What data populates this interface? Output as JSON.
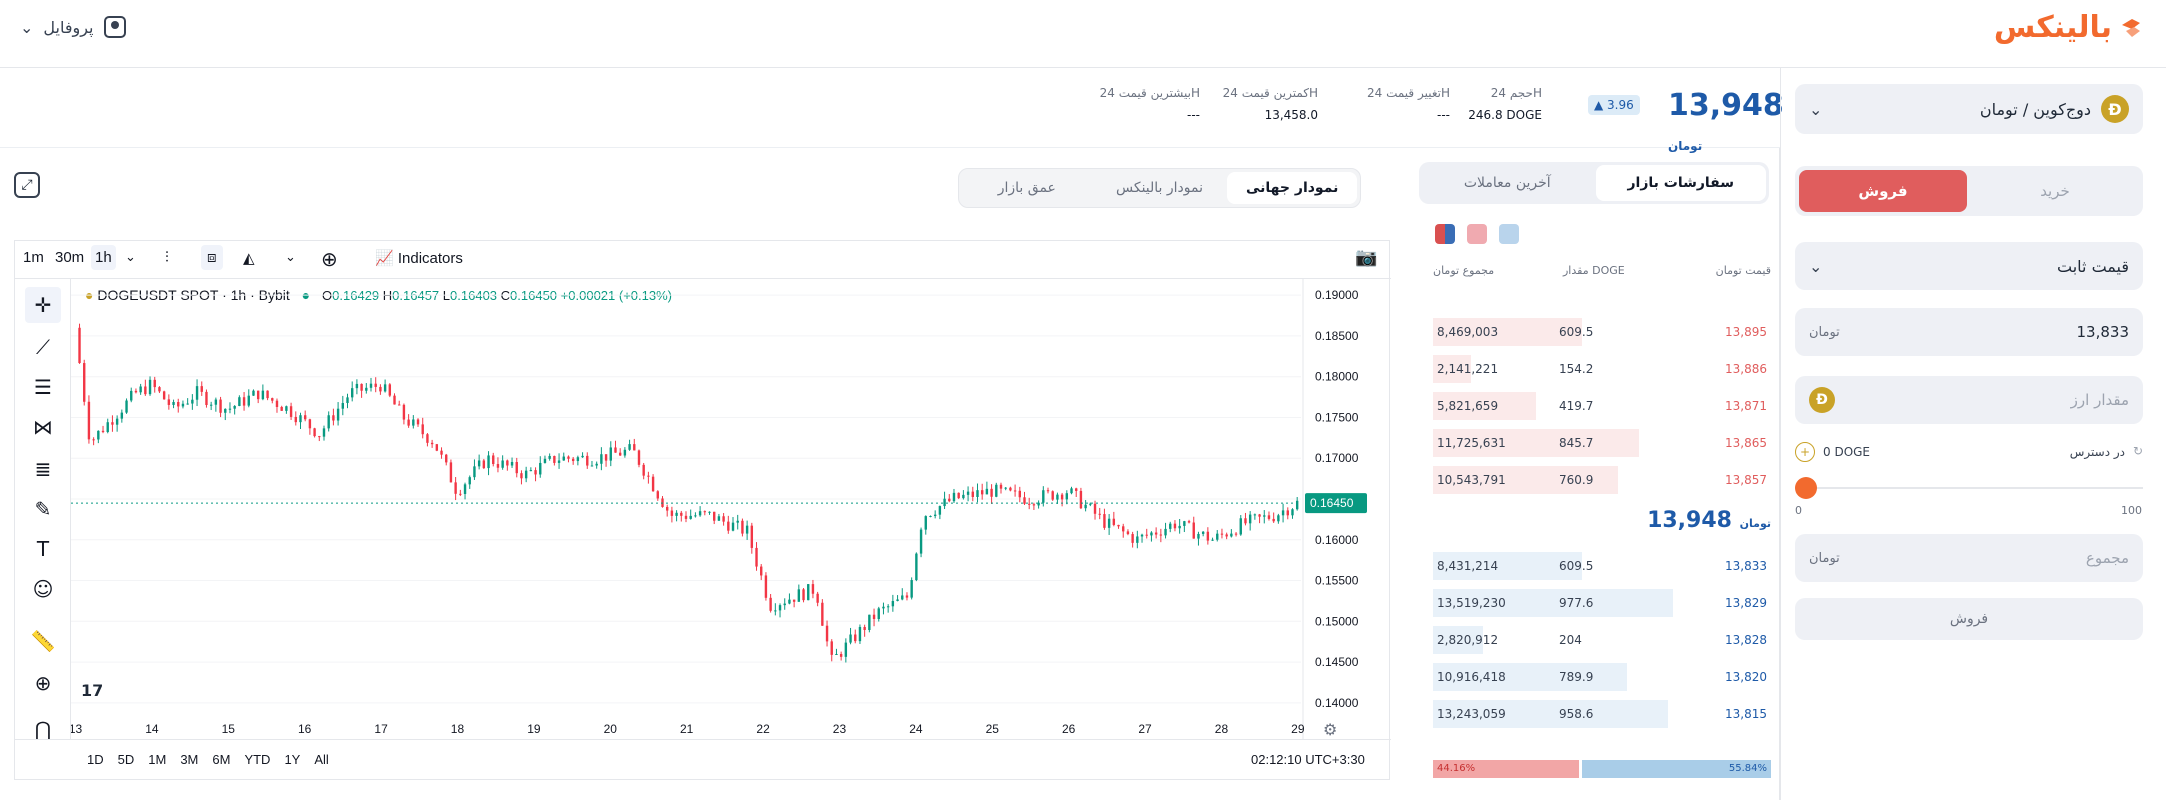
{
  "topbar": {
    "logo_text": "بالینکس",
    "profile_label": "پروفایل"
  },
  "header": {
    "price": "13,948",
    "price_unit": "تومان",
    "change_pct": "3.96",
    "stats": [
      {
        "label": "حجم 24H",
        "value": "246.8 DOGE"
      },
      {
        "label": "تغییر قیمت 24H",
        "value": "---"
      },
      {
        "label": "کمترین قیمت 24H",
        "value": "13,458.0"
      },
      {
        "label": "بیشترین قیمت 24H",
        "value": "---"
      }
    ]
  },
  "trade_panel": {
    "pair": "دوج‌کوین / تومان",
    "buy_label": "خرید",
    "sell_label": "فروش",
    "order_type": "قیمت ثابت",
    "price_value": "13,833",
    "amount_placeholder": "مقدار ارز",
    "available_label": "در دسترس",
    "available_value": "0 DOGE",
    "slider_min": "0",
    "slider_max": "100",
    "slider_position_pct": 0,
    "total_placeholder": "مجموع",
    "submit_label": "فروش",
    "unit": "تومان"
  },
  "orderbook": {
    "tabs": [
      "سفارشات بازار",
      "آخرین معاملات"
    ],
    "col_price": "قیمت",
    "col_amount": "مقدار DOGE",
    "col_total": "مجموع",
    "unit": "تومان",
    "asks": [
      {
        "price": "13,895",
        "amount": "609.5",
        "total": "8,469,003",
        "depth": 0.62
      },
      {
        "price": "13,886",
        "amount": "154.2",
        "total": "2,141,221",
        "depth": 0.16
      },
      {
        "price": "13,871",
        "amount": "419.7",
        "total": "5,821,659",
        "depth": 0.43
      },
      {
        "price": "13,865",
        "amount": "845.7",
        "total": "11,725,631",
        "depth": 0.86
      },
      {
        "price": "13,857",
        "amount": "760.9",
        "total": "10,543,791",
        "depth": 0.77
      }
    ],
    "mid_price": "13,948",
    "bids": [
      {
        "price": "13,833",
        "amount": "609.5",
        "total": "8,431,214",
        "depth": 0.62
      },
      {
        "price": "13,829",
        "amount": "977.6",
        "total": "13,519,230",
        "depth": 1.0
      },
      {
        "price": "13,828",
        "amount": "204",
        "total": "2,820,912",
        "depth": 0.21
      },
      {
        "price": "13,820",
        "amount": "789.9",
        "total": "10,916,418",
        "depth": 0.81
      },
      {
        "price": "13,815",
        "amount": "958.6",
        "total": "13,243,059",
        "depth": 0.98
      }
    ],
    "sell_ratio": "44.16%",
    "buy_ratio": "55.84%"
  },
  "chart_tabs": [
    "نمودار جهانی",
    "نمودار بالینکس",
    "عمق بازار"
  ],
  "chart_toolbar": {
    "intervals": [
      "1m",
      "30m",
      "1h"
    ],
    "indicators_label": "Indicators",
    "ranges": [
      "1D",
      "5D",
      "1M",
      "3M",
      "6M",
      "YTD",
      "1Y",
      "All"
    ],
    "clock": "02:12:10 UTC+3:30"
  },
  "chart_data": {
    "type": "candlestick",
    "title": "DOGEUSDT SPOT · 1h · Bybit",
    "ohlc_text": {
      "o": "0.16429",
      "h": "0.16457",
      "l": "0.16403",
      "c": "0.16450",
      "chg": "+0.00021 (+0.13%)"
    },
    "last_price": "0.16450",
    "last_price_value": 0.1645,
    "ylim": [
      0.139,
      0.191
    ],
    "y_ticks": [
      "0.19000",
      "0.18500",
      "0.18000",
      "0.17500",
      "0.17000",
      "0.16500",
      "0.16000",
      "0.15500",
      "0.15000",
      "0.14500",
      "0.14000"
    ],
    "x_ticks": [
      "13",
      "14",
      "15",
      "16",
      "17",
      "18",
      "19",
      "20",
      "21",
      "22",
      "23",
      "24",
      "25",
      "26",
      "27",
      "28",
      "29"
    ],
    "x_days": [
      13,
      14,
      15,
      16,
      17,
      18,
      19,
      20,
      21,
      22,
      23,
      24,
      25,
      26,
      27,
      28,
      29
    ],
    "x_range": [
      12.95,
      29.05
    ],
    "series": [
      {
        "x": 13.0,
        "y": 0.186
      },
      {
        "x": 13.2,
        "y": 0.172
      },
      {
        "x": 13.5,
        "y": 0.175
      },
      {
        "x": 13.8,
        "y": 0.178
      },
      {
        "x": 14.0,
        "y": 0.179
      },
      {
        "x": 14.3,
        "y": 0.176
      },
      {
        "x": 14.6,
        "y": 0.178
      },
      {
        "x": 15.0,
        "y": 0.176
      },
      {
        "x": 15.4,
        "y": 0.178
      },
      {
        "x": 15.8,
        "y": 0.176
      },
      {
        "x": 16.2,
        "y": 0.173
      },
      {
        "x": 16.6,
        "y": 0.178
      },
      {
        "x": 17.0,
        "y": 0.179
      },
      {
        "x": 17.3,
        "y": 0.175
      },
      {
        "x": 17.7,
        "y": 0.172
      },
      {
        "x": 18.0,
        "y": 0.166
      },
      {
        "x": 18.4,
        "y": 0.17
      },
      {
        "x": 18.9,
        "y": 0.168
      },
      {
        "x": 19.3,
        "y": 0.17
      },
      {
        "x": 19.8,
        "y": 0.17
      },
      {
        "x": 20.3,
        "y": 0.171
      },
      {
        "x": 20.8,
        "y": 0.163
      },
      {
        "x": 21.3,
        "y": 0.163
      },
      {
        "x": 21.8,
        "y": 0.161
      },
      {
        "x": 22.1,
        "y": 0.152
      },
      {
        "x": 22.4,
        "y": 0.153
      },
      {
        "x": 22.7,
        "y": 0.154
      },
      {
        "x": 22.9,
        "y": 0.145
      },
      {
        "x": 23.1,
        "y": 0.147
      },
      {
        "x": 23.5,
        "y": 0.151
      },
      {
        "x": 23.9,
        "y": 0.153
      },
      {
        "x": 24.1,
        "y": 0.163
      },
      {
        "x": 24.5,
        "y": 0.165
      },
      {
        "x": 25.0,
        "y": 0.166
      },
      {
        "x": 25.5,
        "y": 0.165
      },
      {
        "x": 26.0,
        "y": 0.166
      },
      {
        "x": 26.5,
        "y": 0.162
      },
      {
        "x": 26.9,
        "y": 0.16
      },
      {
        "x": 27.4,
        "y": 0.162
      },
      {
        "x": 27.9,
        "y": 0.16
      },
      {
        "x": 28.3,
        "y": 0.162
      },
      {
        "x": 28.7,
        "y": 0.163
      },
      {
        "x": 29.0,
        "y": 0.1645
      }
    ],
    "up_color": "#089981",
    "down_color": "#f23645"
  },
  "colors": {
    "brand": "#f26a2e",
    "sell": "#e05d5d",
    "buy": "#1e5aa8"
  }
}
